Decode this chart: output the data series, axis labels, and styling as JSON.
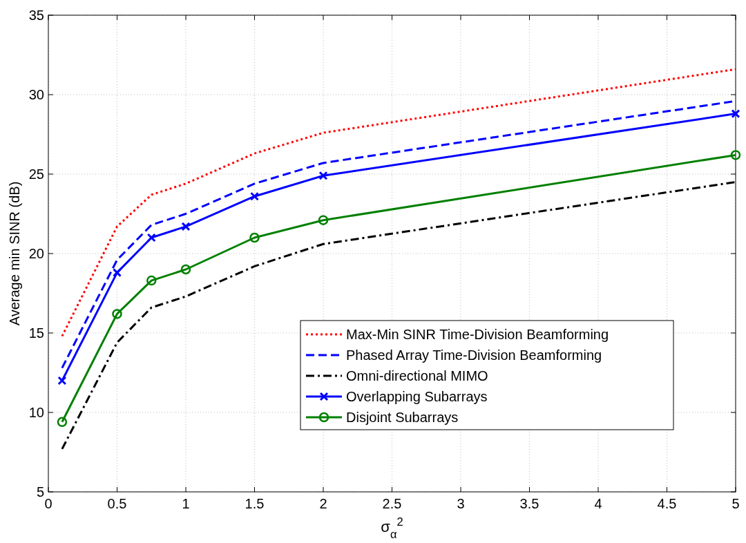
{
  "chart_data": {
    "type": "line",
    "xlabel": "σ$_{α}$$^{2}$",
    "ylabel": "Average min SINR (dB)",
    "x": [
      0.1,
      0.5,
      0.75,
      1,
      1.5,
      2,
      5
    ],
    "xlim": [
      0,
      5
    ],
    "xticks": [
      0,
      0.5,
      1,
      1.5,
      2,
      2.5,
      3,
      3.5,
      4,
      4.5,
      5
    ],
    "ylim": [
      5,
      35
    ],
    "yticks": [
      5,
      10,
      15,
      20,
      25,
      30,
      35
    ],
    "grid": true,
    "legend": "bottom right",
    "series": [
      {
        "name": "Max-Min SINR Time-Division Beamforming",
        "color": "#ff0000",
        "line_style": "dotted",
        "marker": "none",
        "values": [
          14.8,
          21.7,
          23.7,
          24.4,
          26.3,
          27.6,
          31.6
        ]
      },
      {
        "name": "Phased Array Time-Division Beamforming",
        "color": "#0000ff",
        "line_style": "dashed",
        "marker": "none",
        "values": [
          12.8,
          19.6,
          21.8,
          22.5,
          24.4,
          25.7,
          29.6
        ]
      },
      {
        "name": "Omni-directional MIMO",
        "color": "#000000",
        "line_style": "dashdot",
        "marker": "none",
        "values": [
          7.7,
          14.4,
          16.6,
          17.3,
          19.2,
          20.6,
          24.5
        ]
      },
      {
        "name": "Overlapping Subarrays",
        "color": "#0000ff",
        "line_style": "solid",
        "marker": "cross",
        "values": [
          12.0,
          18.8,
          21.0,
          21.7,
          23.6,
          24.9,
          28.8
        ]
      },
      {
        "name": "Disjoint Subarrays",
        "color": "#008000",
        "line_style": "solid",
        "marker": "circle",
        "values": [
          9.4,
          16.2,
          18.3,
          19.0,
          21.0,
          22.1,
          26.2
        ]
      }
    ]
  }
}
